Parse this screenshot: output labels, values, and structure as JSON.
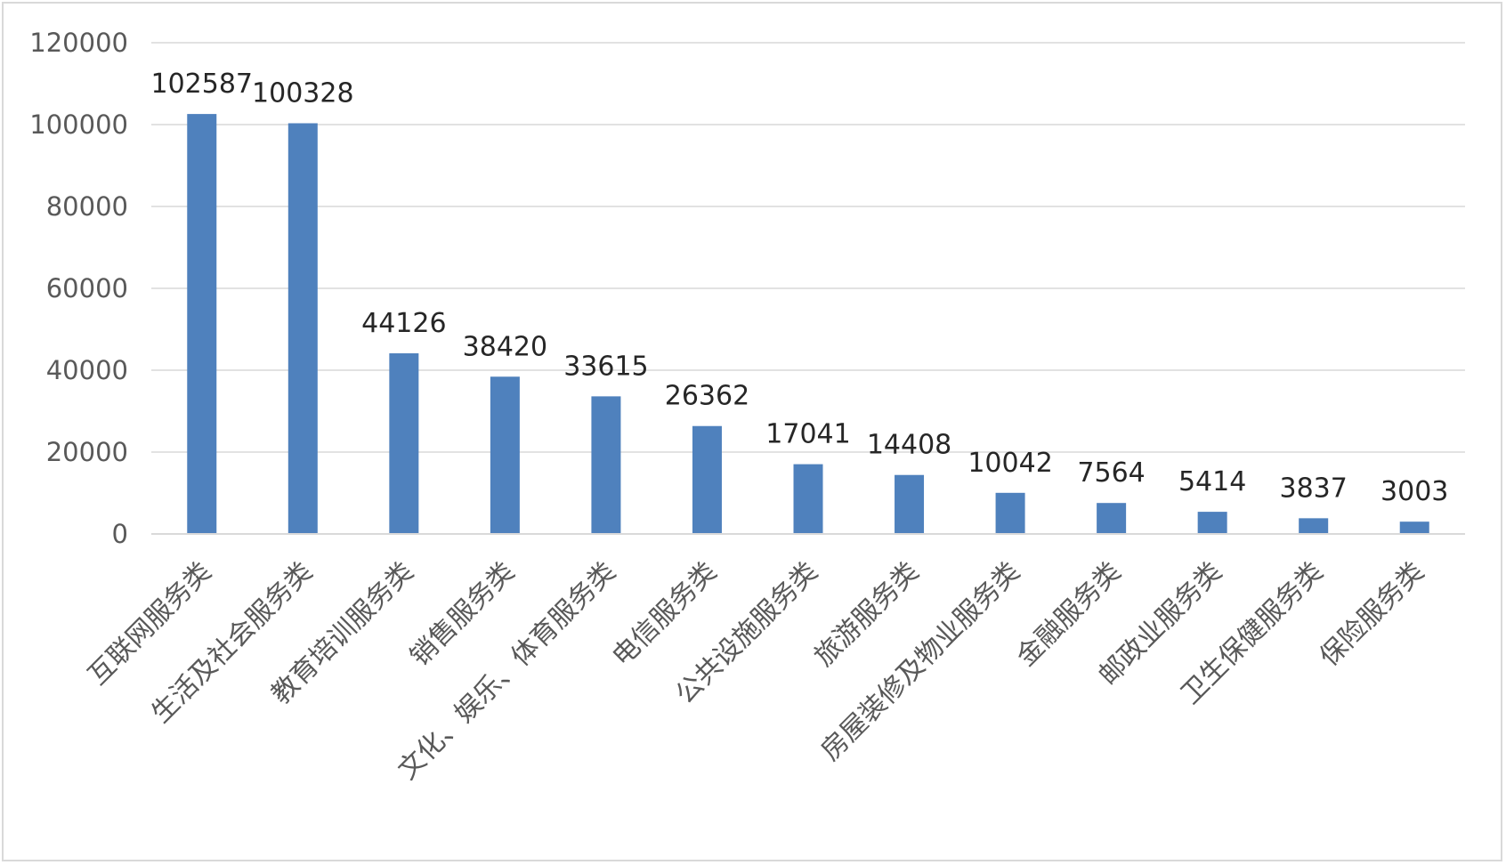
{
  "chart_data": {
    "type": "bar",
    "title": "",
    "xlabel": "",
    "ylabel": "",
    "categories": [
      "互联网服务类",
      "生活及社会服务类",
      "教育培训服务类",
      "销售服务类",
      "文化、娱乐、体育服务类",
      "电信服务类",
      "公共设施服务类",
      "旅游服务类",
      "房屋装修及物业服务类",
      "金融服务类",
      "邮政业服务类",
      "卫生保健服务类",
      "保险服务类"
    ],
    "values": [
      102587,
      100328,
      44126,
      38420,
      33615,
      26362,
      17041,
      14408,
      10042,
      7564,
      5414,
      3837,
      3003
    ],
    "data_labels": [
      "102587",
      "100328",
      "44126",
      "38420",
      "33615",
      "26362",
      "17041",
      "14408",
      "10042",
      "7564",
      "5414",
      "3837",
      "3003"
    ],
    "ylim": [
      0,
      120000
    ],
    "yticks": [
      "0",
      "20000",
      "40000",
      "60000",
      "80000",
      "100000",
      "120000"
    ],
    "grid": true,
    "legend": "none",
    "bar_color": "#4f81bd",
    "grid_color": "#d9d9d9",
    "axis_color": "#d9d9d9"
  }
}
